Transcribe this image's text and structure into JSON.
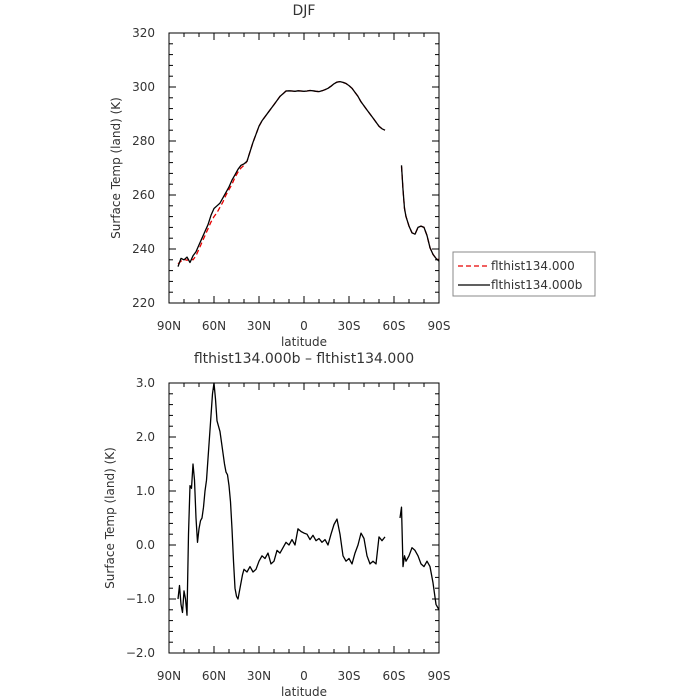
{
  "chart_data": [
    {
      "type": "line",
      "title": "DJF",
      "xlabel": "latitude",
      "ylabel": "Surface Temp (land) (K)",
      "xlim": [
        90,
        -90
      ],
      "ylim": [
        220,
        320
      ],
      "xticks": [
        90,
        60,
        30,
        0,
        -30,
        -60,
        -90
      ],
      "xtick_labels": [
        "90N",
        "60N",
        "30N",
        "0",
        "30S",
        "60S",
        "90S"
      ],
      "yticks": [
        220,
        240,
        260,
        280,
        300,
        320
      ],
      "ytick_labels": [
        "220",
        "240",
        "260",
        "280",
        "300",
        "320"
      ],
      "legend_position": "right",
      "series": [
        {
          "name": "flthist134.000",
          "color": "#e60000",
          "dash": "dashed",
          "segments": [
            {
              "x": [
                84,
                82,
                80,
                78,
                76,
                74,
                72,
                70,
                68,
                66,
                64,
                62,
                60,
                58,
                56,
                54,
                52,
                50,
                48,
                46,
                44,
                42,
                40,
                38,
                36,
                34,
                32,
                30,
                28,
                26,
                24,
                22,
                20,
                18,
                16,
                14,
                12,
                10,
                8,
                6,
                4,
                2,
                0,
                -2,
                -4,
                -6,
                -8,
                -10,
                -12,
                -14,
                -16,
                -18,
                -20,
                -22,
                -24,
                -26,
                -28,
                -30,
                -32,
                -34,
                -36,
                -38,
                -40,
                -42,
                -44,
                -46,
                -48,
                -50,
                -52,
                -54
              ],
              "y": [
                234.5,
                235.5,
                236.2,
                235.8,
                236.5,
                236.0,
                237.5,
                240.0,
                242.5,
                245.0,
                247.5,
                250.0,
                252.0,
                253.5,
                255.5,
                257.5,
                260.0,
                262.0,
                264.0,
                266.5,
                268.5,
                270.0,
                271.0,
                272.5,
                276.0,
                279.5,
                282.5,
                285.5,
                287.5,
                289.0,
                290.5,
                292.0,
                293.5,
                295.0,
                296.5,
                297.5,
                298.5,
                298.6,
                298.5,
                298.4,
                298.6,
                298.5,
                298.4,
                298.5,
                298.7,
                298.6,
                298.4,
                298.3,
                298.6,
                299.0,
                299.5,
                300.3,
                301.2,
                301.8,
                302.0,
                301.7,
                301.3,
                300.5,
                299.5,
                298.0,
                296.5,
                294.5,
                293.0,
                291.5,
                290.0,
                288.5,
                287.0,
                285.5,
                284.5,
                284.0
              ]
            },
            {
              "x": [
                -65,
                -66,
                -67,
                -68,
                -70,
                -72,
                -74,
                -76,
                -78,
                -80,
                -82,
                -84,
                -86,
                -88,
                -90
              ],
              "y": [
                270.5,
                262.0,
                255.0,
                252.0,
                248.5,
                246.0,
                245.5,
                248.0,
                248.5,
                248.0,
                245.0,
                240.5,
                238.0,
                236.5,
                236.0
              ]
            }
          ]
        },
        {
          "name": "flthist134.000b",
          "color": "#000000",
          "dash": "solid",
          "segments": [
            {
              "x": [
                84,
                82,
                80,
                78,
                76,
                74,
                72,
                70,
                68,
                66,
                64,
                62,
                60,
                58,
                56,
                54,
                52,
                50,
                48,
                46,
                44,
                42,
                40,
                38,
                36,
                34,
                32,
                30,
                28,
                26,
                24,
                22,
                20,
                18,
                16,
                14,
                12,
                10,
                8,
                6,
                4,
                2,
                0,
                -2,
                -4,
                -6,
                -8,
                -10,
                -12,
                -14,
                -16,
                -18,
                -20,
                -22,
                -24,
                -26,
                -28,
                -30,
                -32,
                -34,
                -36,
                -38,
                -40,
                -42,
                -44,
                -46,
                -48,
                -50,
                -52,
                -54
              ],
              "y": [
                233.5,
                236.5,
                236.0,
                237.0,
                235.0,
                237.5,
                239.0,
                241.5,
                244.0,
                246.5,
                249.0,
                252.5,
                255.0,
                256.0,
                257.0,
                259.0,
                261.0,
                263.0,
                265.5,
                267.5,
                269.5,
                271.0,
                271.5,
                272.5,
                276.0,
                279.5,
                282.5,
                285.5,
                287.5,
                289.0,
                290.5,
                292.0,
                293.5,
                295.0,
                296.5,
                297.5,
                298.5,
                298.6,
                298.5,
                298.4,
                298.6,
                298.5,
                298.4,
                298.5,
                298.7,
                298.6,
                298.4,
                298.3,
                298.6,
                299.0,
                299.5,
                300.3,
                301.2,
                301.8,
                302.0,
                301.7,
                301.3,
                300.5,
                299.5,
                298.0,
                296.5,
                294.5,
                293.0,
                291.5,
                290.0,
                288.5,
                287.0,
                285.5,
                284.5,
                284.0
              ]
            },
            {
              "x": [
                -65,
                -66,
                -67,
                -68,
                -70,
                -72,
                -74,
                -76,
                -78,
                -80,
                -82,
                -84,
                -86,
                -88,
                -90
              ],
              "y": [
                271.0,
                262.0,
                255.0,
                252.0,
                248.5,
                246.0,
                245.5,
                248.0,
                248.5,
                248.0,
                245.0,
                240.5,
                238.0,
                236.5,
                235.5
              ]
            }
          ]
        }
      ]
    },
    {
      "type": "line",
      "title": "flthist134.000b – flthist134.000",
      "xlabel": "latitude",
      "ylabel": "Surface Temp (land) (K)",
      "xlim": [
        90,
        -90
      ],
      "ylim": [
        -2.0,
        3.0
      ],
      "xticks": [
        90,
        60,
        30,
        0,
        -30,
        -60,
        -90
      ],
      "xtick_labels": [
        "90N",
        "60N",
        "30N",
        "0",
        "30S",
        "60S",
        "90S"
      ],
      "yticks": [
        -2.0,
        -1.0,
        0.0,
        1.0,
        2.0,
        3.0
      ],
      "ytick_labels": [
        "−2.0",
        "−1.0",
        "0.0",
        "1.0",
        "2.0",
        "3.0"
      ],
      "series": [
        {
          "color": "#000000",
          "dash": "solid",
          "segments": [
            {
              "x": [
                84,
                83,
                82,
                81,
                80,
                79,
                78,
                77,
                76,
                75,
                74,
                73,
                72,
                71,
                70,
                69,
                68,
                67,
                66,
                65,
                64,
                63,
                62,
                61,
                60,
                59,
                58,
                57,
                56,
                55,
                54,
                53,
                52,
                51,
                50,
                49,
                48,
                47,
                46,
                45,
                44,
                43,
                42,
                41,
                40,
                38,
                36,
                34,
                32,
                30,
                28,
                26,
                24,
                22,
                20,
                18,
                16,
                14,
                12,
                10,
                8,
                6,
                4,
                2,
                0,
                -2,
                -4,
                -6,
                -8,
                -10,
                -12,
                -14,
                -16,
                -18,
                -20,
                -22,
                -24,
                -26,
                -28,
                -30,
                -32,
                -34,
                -36,
                -38,
                -40,
                -42,
                -44,
                -46,
                -48,
                -50,
                -52,
                -54
              ],
              "y": [
                -1.0,
                -0.75,
                -1.1,
                -1.25,
                -0.85,
                -1.0,
                -1.3,
                0.2,
                1.1,
                1.05,
                1.5,
                1.2,
                0.5,
                0.05,
                0.3,
                0.45,
                0.5,
                0.7,
                1.0,
                1.2,
                1.6,
                2.0,
                2.4,
                2.8,
                3.0,
                2.7,
                2.3,
                2.2,
                2.1,
                1.9,
                1.7,
                1.5,
                1.35,
                1.3,
                1.1,
                0.8,
                0.3,
                -0.3,
                -0.8,
                -0.95,
                -1.0,
                -0.85,
                -0.7,
                -0.55,
                -0.45,
                -0.5,
                -0.4,
                -0.5,
                -0.45,
                -0.3,
                -0.2,
                -0.25,
                -0.15,
                -0.35,
                -0.3,
                -0.1,
                -0.15,
                -0.05,
                0.05,
                0.0,
                0.1,
                0.0,
                0.3,
                0.25,
                0.22,
                0.2,
                0.1,
                0.18,
                0.08,
                0.12,
                0.05,
                0.1,
                0.0,
                0.2,
                0.38,
                0.48,
                0.2,
                -0.2,
                -0.3,
                -0.25,
                -0.35,
                -0.15,
                0.0,
                0.22,
                0.12,
                -0.2,
                -0.35,
                -0.3,
                -0.35,
                0.15,
                0.08,
                0.15
              ]
            },
            {
              "x": [
                -64,
                -65,
                -66,
                -67,
                -68,
                -70,
                -72,
                -74,
                -76,
                -78,
                -80,
                -82,
                -84,
                -86,
                -88,
                -90
              ],
              "y": [
                0.5,
                0.7,
                -0.4,
                -0.2,
                -0.3,
                -0.2,
                -0.05,
                -0.1,
                -0.2,
                -0.35,
                -0.4,
                -0.3,
                -0.4,
                -0.7,
                -1.1,
                -1.2
              ]
            }
          ]
        }
      ]
    }
  ]
}
